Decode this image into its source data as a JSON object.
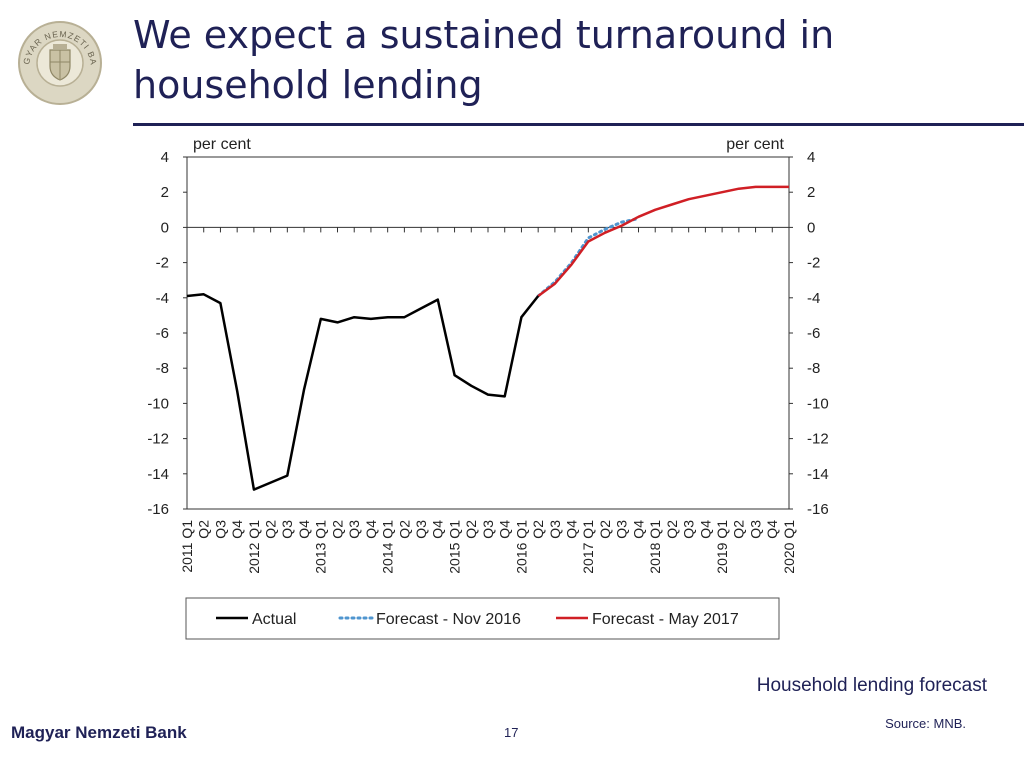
{
  "logo": {
    "text_top": "MAGYAR NEMZETI BANK",
    "icon": "mnb-seal-icon"
  },
  "slide": {
    "title": "We expect a sustained turnaround in household lending",
    "caption": "Household lending forecast",
    "source": "Source: MNB.",
    "bank_name": "Magyar Nemzeti Bank",
    "page_number": "17"
  },
  "colors": {
    "title": "#1f2156",
    "actual": "#000000",
    "forecast_nov_2016": "#4f95cf",
    "forecast_may_2017": "#d01f25"
  },
  "chart_data": {
    "type": "line",
    "title": "",
    "ylabel_left": "per cent",
    "ylabel_right": "per cent",
    "ylim": [
      -16,
      4
    ],
    "yticks": [
      4,
      2,
      0,
      -2,
      -4,
      -6,
      -8,
      -10,
      -12,
      -14,
      -16
    ],
    "grid": false,
    "legend_position": "bottom",
    "quarters": [
      "Q1",
      "Q2",
      "Q3",
      "Q4"
    ],
    "years": [
      "2011",
      "2012",
      "2013",
      "2014",
      "2015",
      "2016",
      "2017",
      "2018",
      "2019",
      "2020"
    ],
    "categories": [
      "2011 Q1",
      "2011 Q2",
      "2011 Q3",
      "2011 Q4",
      "2012 Q1",
      "2012 Q2",
      "2012 Q3",
      "2012 Q4",
      "2013 Q1",
      "2013 Q2",
      "2013 Q3",
      "2013 Q4",
      "2014 Q1",
      "2014 Q2",
      "2014 Q3",
      "2014 Q4",
      "2015 Q1",
      "2015 Q2",
      "2015 Q3",
      "2015 Q4",
      "2016 Q1",
      "2016 Q2",
      "2016 Q3",
      "2016 Q4",
      "2017 Q1",
      "2017 Q2",
      "2017 Q3",
      "2017 Q4",
      "2018 Q1",
      "2018 Q2",
      "2018 Q3",
      "2018 Q4",
      "2019 Q1",
      "2019 Q2",
      "2019 Q3",
      "2019 Q4",
      "2020 Q1"
    ],
    "series": [
      {
        "name": "Actual",
        "style": "solid",
        "values": [
          -3.9,
          -3.8,
          -4.3,
          -9.3,
          -14.9,
          -14.5,
          -14.1,
          -9.2,
          -5.2,
          -5.4,
          -5.1,
          -5.2,
          -5.1,
          -5.1,
          -4.6,
          -4.1,
          -8.4,
          -9.0,
          -9.5,
          -9.6,
          -5.1,
          -3.9,
          null,
          null,
          null,
          null,
          null,
          null,
          null,
          null,
          null,
          null,
          null,
          null,
          null,
          null,
          null
        ]
      },
      {
        "name": "Forecast - Nov 2016",
        "style": "dotted",
        "values": [
          null,
          null,
          null,
          null,
          null,
          null,
          null,
          null,
          null,
          null,
          null,
          null,
          null,
          null,
          null,
          null,
          null,
          null,
          null,
          null,
          null,
          -3.9,
          -3.1,
          -2.0,
          -0.6,
          -0.1,
          0.3,
          0.5,
          null,
          null,
          null,
          null,
          null,
          null,
          null,
          null,
          null
        ]
      },
      {
        "name": "Forecast - May 2017",
        "style": "solid",
        "values": [
          null,
          null,
          null,
          null,
          null,
          null,
          null,
          null,
          null,
          null,
          null,
          null,
          null,
          null,
          null,
          null,
          null,
          null,
          null,
          null,
          null,
          -3.9,
          -3.2,
          -2.1,
          -0.8,
          -0.3,
          0.1,
          0.6,
          1.0,
          1.3,
          1.6,
          1.8,
          2.0,
          2.2,
          2.3,
          2.3,
          2.3
        ]
      }
    ]
  }
}
